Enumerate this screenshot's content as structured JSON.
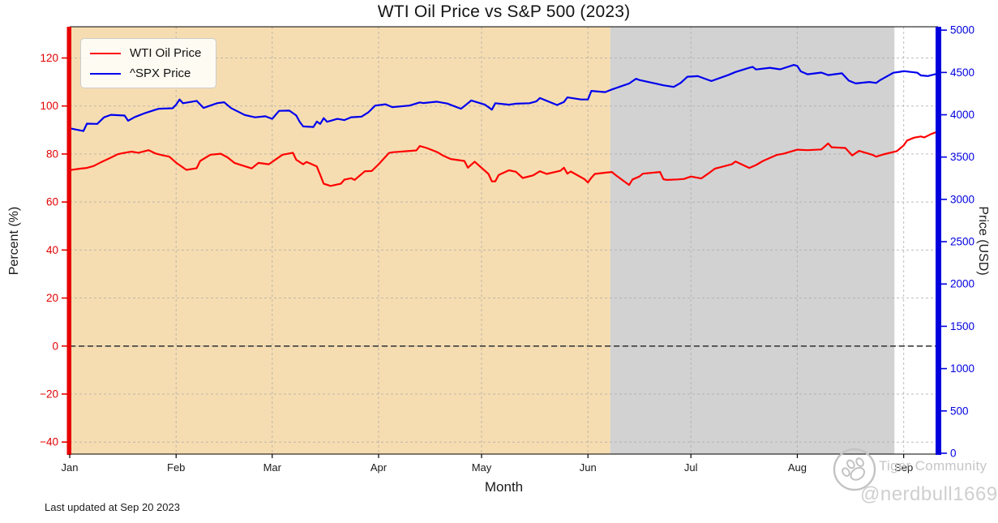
{
  "title": "WTI Oil Price vs S&P 500 (2023)",
  "footer": {
    "last_updated": "Last updated at Sep 20 2023"
  },
  "watermark": {
    "brand": "Tiger Community",
    "handle": "@nerdbull1669",
    "logo": "tiger-paw-logo"
  },
  "chart_data": {
    "type": "line",
    "title": "WTI Oil Price vs S&P 500 (2023)",
    "xlabel": "Month",
    "grid": true,
    "legend_position": "upper-left",
    "x_range_days": [
      0,
      253
    ],
    "x_tick_days": [
      0,
      31,
      59,
      90,
      120,
      151,
      181,
      212,
      243
    ],
    "x_tick_labels": [
      "Jan",
      "Feb",
      "Mar",
      "Apr",
      "May",
      "Jun",
      "Jul",
      "Aug",
      "Sep"
    ],
    "left_axis": {
      "label": "Percent (%)",
      "color": "#e10000",
      "spine_color": "#e60000",
      "ticks": [
        -40,
        -20,
        0,
        20,
        40,
        60,
        80,
        100,
        120
      ],
      "range": [
        -45,
        133
      ]
    },
    "right_axis": {
      "label": "Price (USD)",
      "color": "#0000e0",
      "spine_color": "#0000dd",
      "ticks": [
        0,
        500,
        1000,
        1500,
        2000,
        2500,
        3000,
        3500,
        4000,
        4500,
        5000
      ],
      "range": [
        -10,
        5040
      ]
    },
    "zero_line": {
      "value": 0,
      "color": "#3c3c3c",
      "style": "dashed"
    },
    "regions": [
      {
        "name": "first-half-highlight",
        "from_day": 0,
        "to_day": 157.5,
        "color": "#f6ddb1"
      },
      {
        "name": "summer-highlight",
        "from_day": 157.5,
        "to_day": 240.3,
        "color": "#d2d2d2"
      }
    ],
    "series": [
      {
        "name": "WTI Oil Price",
        "color": "#ff0000",
        "axis": "left",
        "line_width": 2.2,
        "x_days": [
          0,
          3,
          5,
          7,
          9,
          12,
          14,
          16,
          18,
          20,
          23,
          25,
          27,
          29,
          31,
          34,
          37,
          38,
          41,
          44,
          46,
          48,
          53,
          55,
          58,
          60,
          62,
          65,
          66,
          68,
          69,
          72,
          73,
          74,
          76,
          79,
          80,
          82,
          83,
          86,
          88,
          90,
          93,
          94,
          101,
          102,
          104,
          107,
          109,
          111,
          115,
          116,
          118,
          122,
          123,
          124,
          125,
          128,
          130,
          132,
          135,
          137,
          139,
          143,
          144,
          145,
          146,
          150,
          151,
          152,
          153,
          156,
          158,
          159,
          163,
          164,
          166,
          167,
          172,
          173,
          174,
          177,
          179,
          181,
          184,
          186,
          188,
          193,
          194,
          198,
          200,
          202,
          206,
          208,
          212,
          215,
          219,
          221,
          222,
          226,
          228,
          230,
          234,
          235,
          237,
          241,
          243,
          244,
          246,
          248,
          249,
          251,
          253
        ],
        "values": [
          73.3,
          73.9,
          74.2,
          75.0,
          76.5,
          78.5,
          79.9,
          80.5,
          81.0,
          80.5,
          81.6,
          80.2,
          79.5,
          78.9,
          76.4,
          73.4,
          74.1,
          77.1,
          79.7,
          80.1,
          78.6,
          76.3,
          74.0,
          76.3,
          75.7,
          77.7,
          79.7,
          80.5,
          77.6,
          75.7,
          76.7,
          74.8,
          71.3,
          67.6,
          66.7,
          67.6,
          69.3,
          69.9,
          69.2,
          72.8,
          72.9,
          75.7,
          80.4,
          80.7,
          81.5,
          83.3,
          82.5,
          80.8,
          79.2,
          77.9,
          77.1,
          74.3,
          76.8,
          71.7,
          68.6,
          68.6,
          71.3,
          73.2,
          72.6,
          70.0,
          71.1,
          72.8,
          71.7,
          73.0,
          74.3,
          71.8,
          72.7,
          69.5,
          68.1,
          70.1,
          71.7,
          72.2,
          72.5,
          71.3,
          67.1,
          69.4,
          70.6,
          71.8,
          72.5,
          69.5,
          69.2,
          69.4,
          69.6,
          70.6,
          69.8,
          71.8,
          73.9,
          75.8,
          76.9,
          74.2,
          75.4,
          77.1,
          79.6,
          80.1,
          81.8,
          81.6,
          81.9,
          84.4,
          82.8,
          82.5,
          79.4,
          81.3,
          79.6,
          78.9,
          79.8,
          81.2,
          83.6,
          85.6,
          86.8,
          87.3,
          86.9,
          88.3,
          89.4
        ]
      },
      {
        "name": "^SPX Price",
        "color": "#0000ee",
        "axis": "right",
        "line_width": 2.2,
        "x_days": [
          0,
          2,
          4,
          5,
          8,
          10,
          12,
          16,
          17,
          19,
          22,
          25,
          26,
          30,
          31,
          32,
          33,
          37,
          39,
          43,
          45,
          47,
          51,
          54,
          57,
          59,
          61,
          64,
          66,
          67,
          68,
          71,
          72,
          73,
          74,
          75,
          78,
          80,
          82,
          85,
          87,
          89,
          92,
          94,
          99,
          102,
          103,
          107,
          110,
          114,
          116,
          117,
          121,
          123,
          124,
          128,
          130,
          134,
          136,
          137,
          142,
          144,
          145,
          149,
          151,
          152,
          156,
          158,
          163,
          165,
          166,
          171,
          173,
          176,
          178,
          180,
          183,
          186,
          187,
          192,
          194,
          198,
          199,
          200,
          204,
          207,
          211,
          212,
          213,
          215,
          219,
          221,
          225,
          227,
          229,
          233,
          235,
          236,
          240,
          242,
          243,
          247,
          248,
          250,
          253
        ],
        "values": [
          3840,
          3824,
          3808,
          3895,
          3892,
          3970,
          3999,
          3991,
          3929,
          3973,
          4020,
          4060,
          4071,
          4077,
          4119,
          4180,
          4136,
          4164,
          4081,
          4137,
          4148,
          4079,
          3997,
          3970,
          3982,
          3951,
          4046,
          4049,
          3992,
          3918,
          3862,
          3856,
          3920,
          3892,
          3960,
          3917,
          3951,
          3937,
          3971,
          3977,
          4028,
          4109,
          4124,
          4090,
          4109,
          4146,
          4138,
          4155,
          4133,
          4071,
          4135,
          4169,
          4119,
          4061,
          4136,
          4119,
          4131,
          4136,
          4159,
          4198,
          4115,
          4151,
          4205,
          4180,
          4180,
          4282,
          4268,
          4299,
          4369,
          4426,
          4410,
          4366,
          4348,
          4329,
          4376,
          4450,
          4456,
          4412,
          4399,
          4472,
          4505,
          4555,
          4566,
          4535,
          4555,
          4537,
          4589,
          4577,
          4513,
          4478,
          4499,
          4469,
          4490,
          4404,
          4370,
          4387,
          4376,
          4406,
          4497,
          4508,
          4516,
          4497,
          4465,
          4457,
          4487
        ]
      }
    ]
  }
}
